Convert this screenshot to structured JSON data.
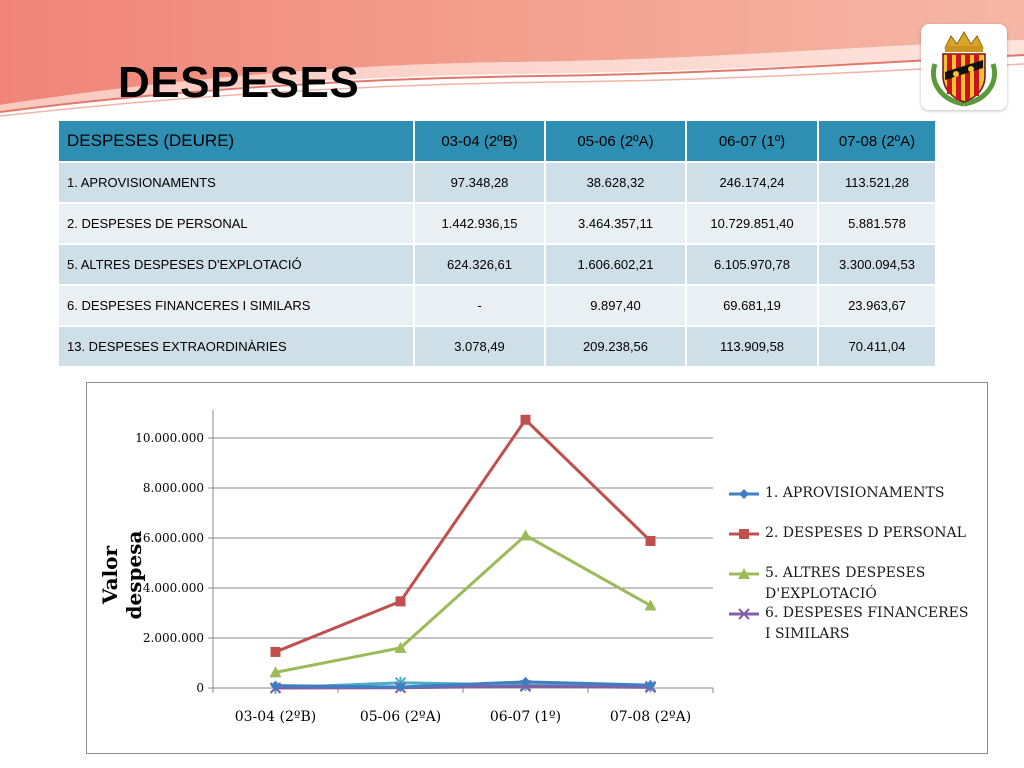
{
  "slide": {
    "title": "DESPESES"
  },
  "table": {
    "header": [
      "DESPESES (DEURE)",
      "03-04 (2ºB)",
      "05-06 (2ºA)",
      "06-07 (1º)",
      "07-08 (2ºA)"
    ],
    "rows": [
      [
        "1. APROVISIONAMENTS",
        "97.348,28",
        "38.628,32",
        "246.174,24",
        "113.521,28"
      ],
      [
        "2. DESPESES DE PERSONAL",
        "1.442.936,15",
        "3.464.357,11",
        "10.729.851,40",
        "5.881.578"
      ],
      [
        "5.  ALTRES DESPESES D'EXPLOTACIÓ",
        "624.326,61",
        "1.606.602,21",
        "6.105.970,78",
        "3.300.094,53"
      ],
      [
        "6.  DESPESES FINANCERES I SIMILARS",
        "-",
        "9.897,40",
        "69.681,19",
        "23.963,67"
      ],
      [
        "13.  DESPESES EXTRAORDINÀRIES",
        "3.078,49",
        "209.238,56",
        "113.909,58",
        "70.411,04"
      ]
    ]
  },
  "colors": {
    "header_bg": "#2f8fb2",
    "row_odd": "#cfdfe7",
    "row_even": "#e9f0f4"
  },
  "emblem": {
    "icon": "coat-of-arms-icon"
  },
  "chart_data": {
    "type": "line",
    "title": "",
    "xlabel": "",
    "ylabel": "Valor despesa",
    "categories": [
      "03-04 (2ºB)",
      "05-06 (2ºA)",
      "06-07 (1º)",
      "07-08 (2ºA)"
    ],
    "ylim": [
      0,
      11000000
    ],
    "yticks": [
      0,
      2000000,
      4000000,
      6000000,
      8000000,
      10000000
    ],
    "ytick_labels": [
      "0",
      "2.000.000",
      "4.000.000",
      "6.000.000",
      "8.000.000",
      "10.000.000"
    ],
    "grid": true,
    "legend_position": "right",
    "series": [
      {
        "name": "1. APROVISIONAMENTS",
        "values": [
          97348.28,
          38628.32,
          246174.24,
          113521.28
        ],
        "color": "#3f7fc1",
        "marker": "diamond"
      },
      {
        "name": "2. DESPESES D PERSONAL",
        "values": [
          1442936.15,
          3464357.11,
          10729851.4,
          5881578
        ],
        "color": "#c0504d",
        "marker": "square"
      },
      {
        "name": "5. ALTRES DESPESES D'EXPLOTACIÓ",
        "values": [
          624326.61,
          1606602.21,
          6105970.78,
          3300094.53
        ],
        "color": "#9bbb59",
        "marker": "triangle"
      },
      {
        "name": "6. DESPESES FINANCERES I SIMILARS",
        "values": [
          0,
          9897.4,
          69681.19,
          23963.67
        ],
        "color": "#7f5fa8",
        "marker": "x"
      },
      {
        "name": "",
        "values": [
          3078.49,
          209238.56,
          113909.58,
          70411.04
        ],
        "color": "#4bacc6",
        "marker": "star"
      }
    ]
  }
}
